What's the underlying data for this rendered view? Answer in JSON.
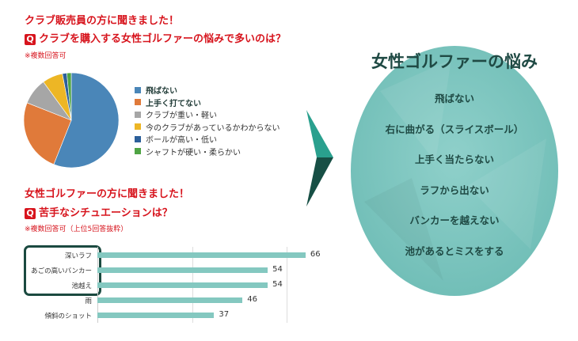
{
  "section1": {
    "heading": "クラブ販売員の方に聞きました！",
    "q_badge": "Q",
    "question": "クラブを購入する女性ゴルファーの悩みで多いのは？",
    "note": "※複数回答可"
  },
  "section2": {
    "heading": "女性ゴルファーの方に聞きました！",
    "q_badge": "Q",
    "question": "苦手なシチュエーションは？",
    "note": "※複数回答可（上位5回答抜粋）"
  },
  "chart_data": [
    {
      "type": "pie",
      "legend_placement": "right",
      "series": [
        {
          "name": "飛ばない",
          "value": 56,
          "color": "#4a86b8",
          "bold": true
        },
        {
          "name": "上手く打てない",
          "value": 25,
          "color": "#e07a3a",
          "bold": true
        },
        {
          "name": "クラブが重い・軽い",
          "value": 9,
          "color": "#a6a6a6"
        },
        {
          "name": "今のクラブがあっているかわからない",
          "value": 7,
          "color": "#edb625"
        },
        {
          "name": "ボールが高い・低い",
          "value": 1.5,
          "color": "#2c5f9a"
        },
        {
          "name": "シャフトが硬い・柔らかい",
          "value": 1.5,
          "color": "#4fa444"
        }
      ]
    },
    {
      "type": "bar",
      "orientation": "horizontal",
      "xlim": [
        0,
        90
      ],
      "grid": true,
      "bar_color": "#84c8c0",
      "categories": [
        "深いラフ",
        "あごの高いバンカー",
        "池越え",
        "雨",
        "傾斜のショット"
      ],
      "values": [
        66,
        54,
        54,
        46,
        37
      ],
      "highlighted": [
        "深いラフ",
        "あごの高いバンカー",
        "池越え"
      ]
    }
  ],
  "summary": {
    "title": "女性ゴルファーの悩み",
    "items": [
      "飛ばない",
      "右に曲がる（スライスボール）",
      "上手く当たらない",
      "ラフから出ない",
      "バンカーを越えない",
      "池があるとミスをする"
    ]
  }
}
